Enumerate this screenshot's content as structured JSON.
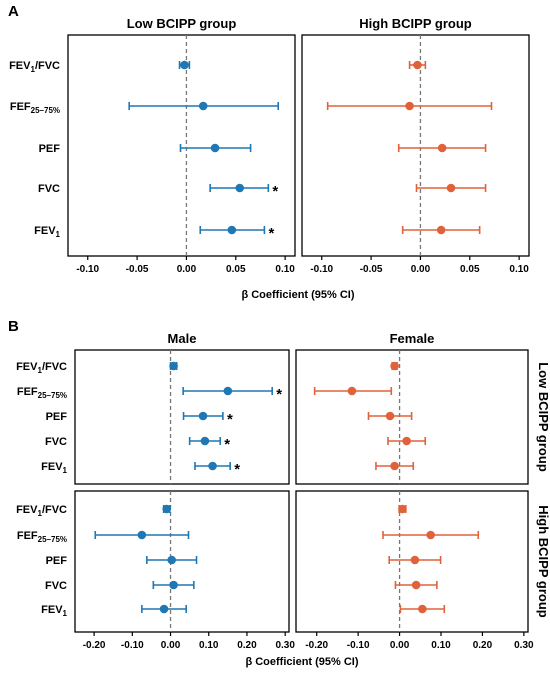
{
  "colors": {
    "blue": "#1f77b4",
    "orange": "#e0623a"
  },
  "chart_data": [
    {
      "type": "forest",
      "panel_label": "A",
      "xlabel": "β Coefficient (95% CI)",
      "xlim": [
        -0.12,
        0.11
      ],
      "xticks": [
        "-0.10",
        "-0.05",
        "0.00",
        "0.05",
        "0.10"
      ],
      "xtick_values": [
        -0.1,
        -0.05,
        0.0,
        0.05,
        0.1
      ],
      "rows": [
        "FEV1/FVC",
        "FEF25–75%",
        "PEF",
        "FVC",
        "FEV1"
      ],
      "facets": [
        {
          "title": "Low BCIPP group",
          "color": "blue",
          "points": [
            {
              "row": "FEV1/FVC",
              "est": -0.002,
              "lo": -0.007,
              "hi": 0.003
            },
            {
              "row": "FEF25–75%",
              "est": 0.017,
              "lo": -0.058,
              "hi": 0.093
            },
            {
              "row": "PEF",
              "est": 0.029,
              "lo": -0.006,
              "hi": 0.065
            },
            {
              "row": "FVC",
              "est": 0.054,
              "lo": 0.024,
              "hi": 0.083,
              "star": "*"
            },
            {
              "row": "FEV1",
              "est": 0.046,
              "lo": 0.014,
              "hi": 0.079,
              "star": "*"
            }
          ]
        },
        {
          "title": "High BCIPP group",
          "color": "orange",
          "points": [
            {
              "row": "FEV1/FVC",
              "est": -0.003,
              "lo": -0.011,
              "hi": 0.005
            },
            {
              "row": "FEF25–75%",
              "est": -0.011,
              "lo": -0.094,
              "hi": 0.072
            },
            {
              "row": "PEF",
              "est": 0.022,
              "lo": -0.022,
              "hi": 0.066
            },
            {
              "row": "FVC",
              "est": 0.031,
              "lo": -0.004,
              "hi": 0.066
            },
            {
              "row": "FEV1",
              "est": 0.021,
              "lo": -0.018,
              "hi": 0.06
            }
          ]
        }
      ]
    },
    {
      "type": "forest",
      "panel_label": "B",
      "xlabel": "β Coefficient (95% CI)",
      "xlim": [
        -0.25,
        0.31
      ],
      "xticks": [
        "-0.20",
        "-0.10",
        "0.00",
        "0.10",
        "0.20",
        "0.30"
      ],
      "xtick_values": [
        -0.2,
        -0.1,
        0.0,
        0.1,
        0.2,
        0.3
      ],
      "rows": [
        "FEV1/FVC",
        "FEF25–75%",
        "PEF",
        "FVC",
        "FEV1"
      ],
      "column_titles": [
        "Male",
        "Female"
      ],
      "row_strips": [
        "Low BCIPP group",
        "High BCIPP group"
      ],
      "facets": [
        {
          "column": "Male",
          "strip": "Low BCIPP group",
          "color": "blue",
          "points": [
            {
              "row": "FEV1/FVC",
              "est": 0.008,
              "lo": 0.0,
              "hi": 0.016
            },
            {
              "row": "FEF25–75%",
              "est": 0.15,
              "lo": 0.033,
              "hi": 0.266,
              "star": "*"
            },
            {
              "row": "PEF",
              "est": 0.085,
              "lo": 0.034,
              "hi": 0.137,
              "star": "*"
            },
            {
              "row": "FVC",
              "est": 0.09,
              "lo": 0.05,
              "hi": 0.13,
              "star": "*"
            },
            {
              "row": "FEV1",
              "est": 0.11,
              "lo": 0.064,
              "hi": 0.156,
              "star": "*"
            }
          ]
        },
        {
          "column": "Female",
          "strip": "Low BCIPP group",
          "color": "orange",
          "points": [
            {
              "row": "FEV1/FVC",
              "est": -0.012,
              "lo": -0.018,
              "hi": -0.006
            },
            {
              "row": "FEF25–75%",
              "est": -0.115,
              "lo": -0.205,
              "hi": -0.02
            },
            {
              "row": "PEF",
              "est": -0.023,
              "lo": -0.075,
              "hi": 0.029
            },
            {
              "row": "FVC",
              "est": 0.017,
              "lo": -0.028,
              "hi": 0.062
            },
            {
              "row": "FEV1",
              "est": -0.012,
              "lo": -0.057,
              "hi": 0.033
            }
          ]
        },
        {
          "column": "Male",
          "strip": "High BCIPP group",
          "color": "blue",
          "points": [
            {
              "row": "FEV1/FVC",
              "est": -0.01,
              "lo": -0.018,
              "hi": -0.002
            },
            {
              "row": "FEF25–75%",
              "est": -0.075,
              "lo": -0.197,
              "hi": 0.047
            },
            {
              "row": "PEF",
              "est": 0.003,
              "lo": -0.062,
              "hi": 0.068
            },
            {
              "row": "FVC",
              "est": 0.008,
              "lo": -0.045,
              "hi": 0.061
            },
            {
              "row": "FEV1",
              "est": -0.017,
              "lo": -0.075,
              "hi": 0.041
            }
          ]
        },
        {
          "column": "Female",
          "strip": "High BCIPP group",
          "color": "orange",
          "points": [
            {
              "row": "FEV1/FVC",
              "est": 0.007,
              "lo": -0.001,
              "hi": 0.015
            },
            {
              "row": "FEF25–75%",
              "est": 0.075,
              "lo": -0.04,
              "hi": 0.19
            },
            {
              "row": "PEF",
              "est": 0.037,
              "lo": -0.025,
              "hi": 0.099
            },
            {
              "row": "FVC",
              "est": 0.04,
              "lo": -0.01,
              "hi": 0.09
            },
            {
              "row": "FEV1",
              "est": 0.055,
              "lo": 0.002,
              "hi": 0.108
            }
          ]
        }
      ]
    }
  ]
}
